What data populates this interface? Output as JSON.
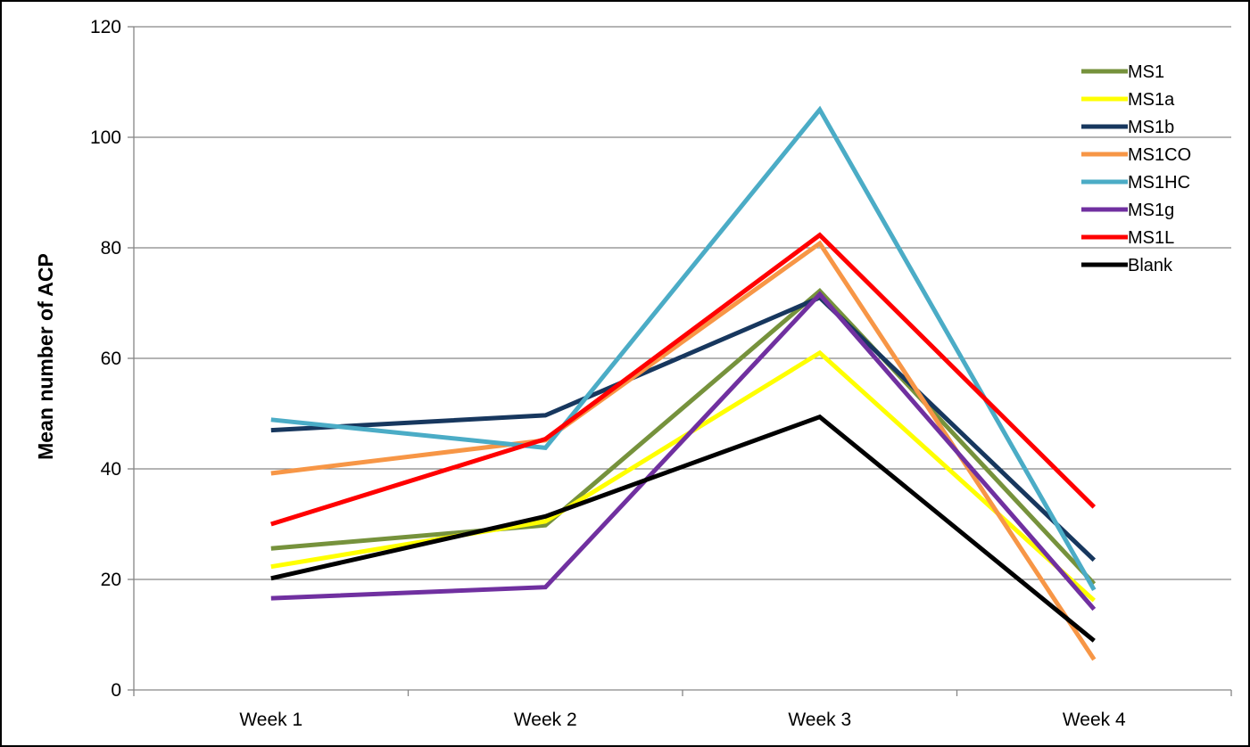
{
  "chart_data": {
    "type": "line",
    "title": "",
    "xlabel": "",
    "ylabel": "Mean number of ACP",
    "ylim": [
      0,
      120
    ],
    "yticks": [
      0,
      20,
      40,
      60,
      80,
      100,
      120
    ],
    "grid": true,
    "legend_position": "top-right",
    "categories": [
      "Week 1",
      "Week 2",
      "Week 3",
      "Week 4"
    ],
    "series": [
      {
        "name": "MS1",
        "color": "#76923C",
        "values": [
          25.6,
          29.8,
          72.2,
          19.2
        ]
      },
      {
        "name": "MS1a",
        "color": "#FFFF00",
        "values": [
          22.3,
          30.5,
          61.0,
          16.2
        ]
      },
      {
        "name": "MS1b",
        "color": "#17375E",
        "values": [
          47.0,
          49.7,
          71.0,
          23.5
        ]
      },
      {
        "name": "MS1CO",
        "color": "#F79646",
        "values": [
          39.2,
          45.2,
          80.8,
          5.5
        ]
      },
      {
        "name": "MS1HC",
        "color": "#4BACC6",
        "values": [
          48.9,
          43.8,
          105.0,
          18.1
        ]
      },
      {
        "name": "MS1g",
        "color": "#7030A0",
        "values": [
          16.6,
          18.6,
          71.6,
          14.6
        ]
      },
      {
        "name": "MS1L",
        "color": "#FF0000",
        "values": [
          30.0,
          45.4,
          82.3,
          33.1
        ]
      },
      {
        "name": "Blank",
        "color": "#000000",
        "values": [
          20.2,
          31.4,
          49.4,
          8.9
        ]
      }
    ]
  }
}
